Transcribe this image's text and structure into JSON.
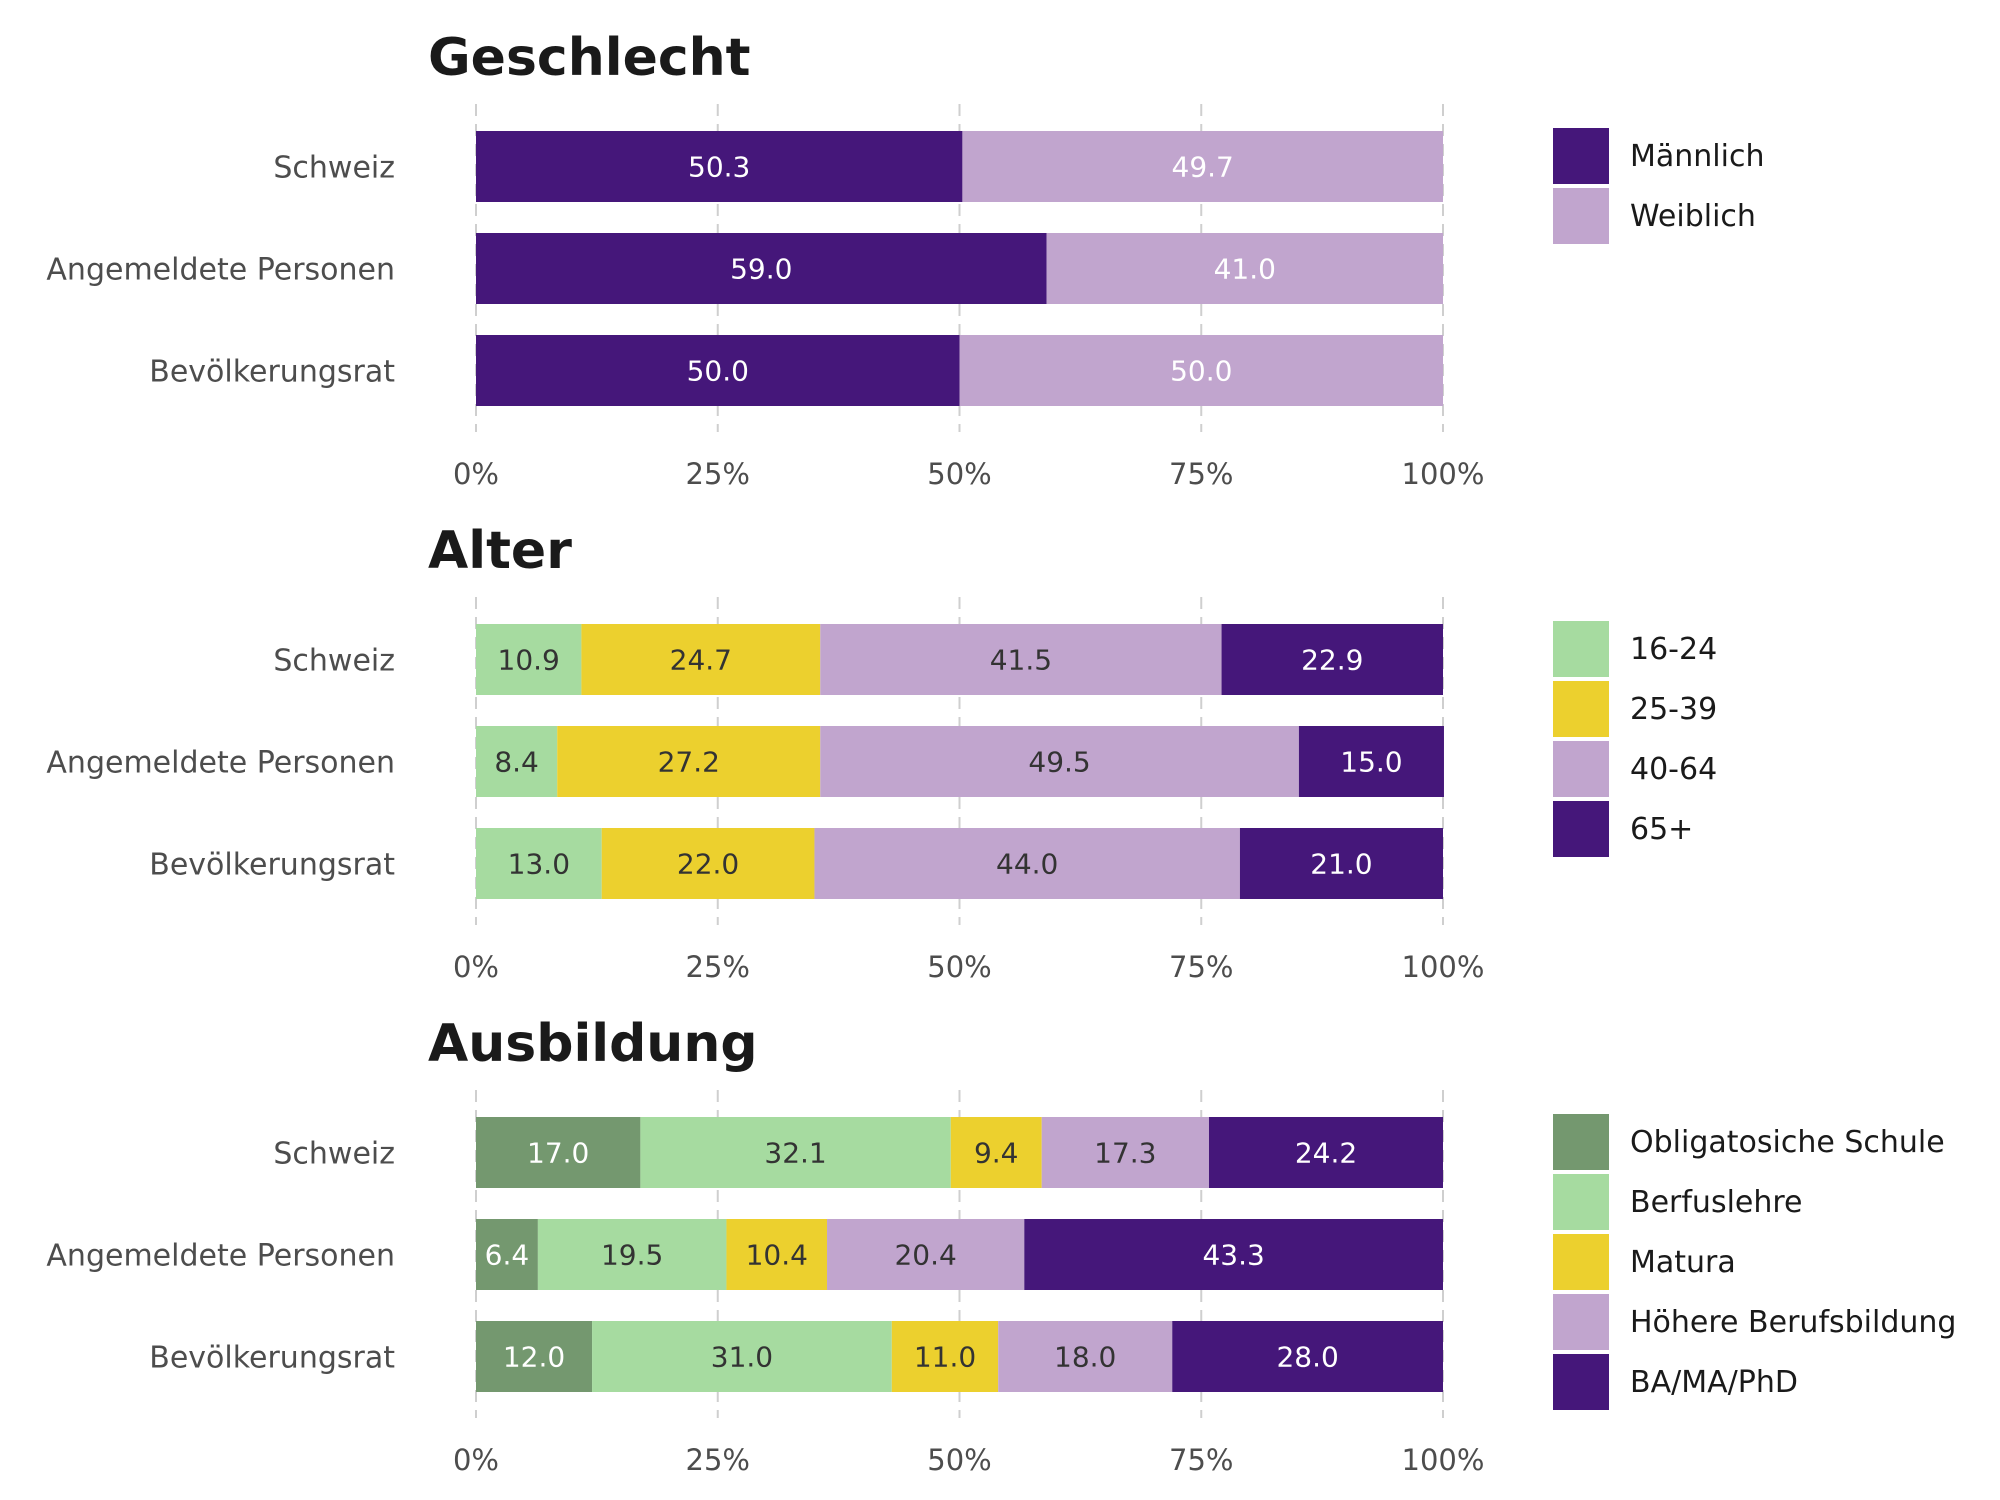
{
  "chart_data": [
    {
      "type": "bar",
      "orientation": "horizontal",
      "stacked": true,
      "title": "Geschlecht",
      "categories": [
        "Schweiz",
        "Angemeldete Personen",
        "Bevölkerungsrat"
      ],
      "series": [
        {
          "name": "Männlich",
          "color": "#45177a",
          "label_color": "#ffffff",
          "values": [
            50.3,
            59.0,
            50.0
          ]
        },
        {
          "name": "Weiblich",
          "color": "#c1a5ce",
          "label_color": "#ffffff",
          "values": [
            49.7,
            41.0,
            50.0
          ]
        }
      ],
      "xlim": [
        0,
        100
      ],
      "xticks": [
        "0%",
        "25%",
        "50%",
        "75%",
        "100%"
      ],
      "legend": "right",
      "grid": true
    },
    {
      "type": "bar",
      "orientation": "horizontal",
      "stacked": true,
      "title": "Alter",
      "categories": [
        "Schweiz",
        "Angemeldete Personen",
        "Bevölkerungsrat"
      ],
      "series": [
        {
          "name": "16-24",
          "color": "#a6dba0",
          "label_color": "#333333",
          "values": [
            10.9,
            8.4,
            13.0
          ]
        },
        {
          "name": "25-39",
          "color": "#ecd02e",
          "label_color": "#333333",
          "values": [
            24.7,
            27.2,
            22.0
          ]
        },
        {
          "name": "40-64",
          "color": "#c1a5ce",
          "label_color": "#333333",
          "values": [
            41.5,
            49.5,
            44.0
          ]
        },
        {
          "name": "65+",
          "color": "#45177a",
          "label_color": "#ffffff",
          "values": [
            22.9,
            15.0,
            21.0
          ]
        }
      ],
      "xlim": [
        0,
        100
      ],
      "xticks": [
        "0%",
        "25%",
        "50%",
        "75%",
        "100%"
      ],
      "legend": "right",
      "grid": true
    },
    {
      "type": "bar",
      "orientation": "horizontal",
      "stacked": true,
      "title": "Ausbildung",
      "categories": [
        "Schweiz",
        "Angemeldete Personen",
        "Bevölkerungsrat"
      ],
      "series": [
        {
          "name": "Obligatosiche Schule",
          "color": "#74986f",
          "label_color": "#ffffff",
          "values": [
            17.0,
            6.4,
            12.0
          ]
        },
        {
          "name": "Berfuslehre",
          "color": "#a6dba0",
          "label_color": "#333333",
          "values": [
            32.1,
            19.5,
            31.0
          ]
        },
        {
          "name": "Matura",
          "color": "#ecd02e",
          "label_color": "#333333",
          "values": [
            9.4,
            10.4,
            11.0
          ]
        },
        {
          "name": "Höhere Berufsbildung",
          "color": "#c1a5ce",
          "label_color": "#333333",
          "values": [
            17.3,
            20.4,
            18.0
          ]
        },
        {
          "name": "BA/MA/PhD",
          "color": "#45177a",
          "label_color": "#ffffff",
          "values": [
            24.2,
            43.3,
            28.0
          ]
        }
      ],
      "xlim": [
        0,
        100
      ],
      "xticks": [
        "0%",
        "25%",
        "50%",
        "75%",
        "100%"
      ],
      "legend": "right",
      "grid": true
    }
  ]
}
